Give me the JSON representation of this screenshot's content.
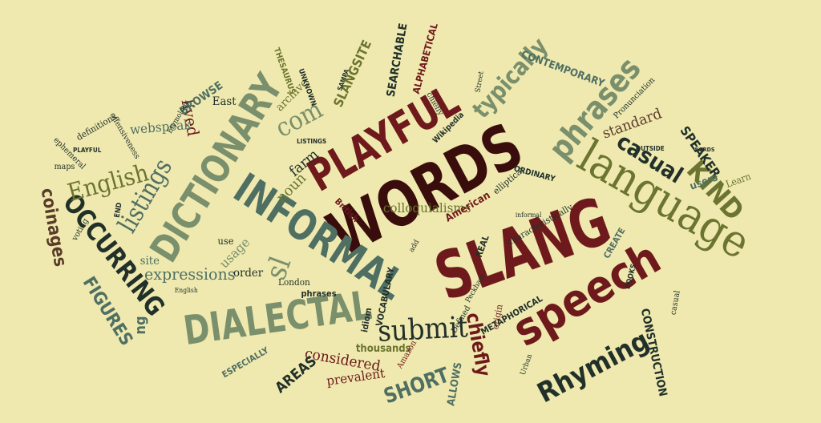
{
  "palette": {
    "background": "#efe9af",
    "dark_maroon": "#3a0d0d",
    "maroon": "#6e1a1c",
    "olive": "#6b7430",
    "sage": "#7a8f6c",
    "slate_green": "#4f6f63",
    "dark_slate": "#22302a",
    "brown": "#5a3c2a"
  },
  "words": [
    {
      "name": "word-words",
      "text": "WORDS",
      "color": "#3a0d0d",
      "style": "bold"
    },
    {
      "name": "word-slang",
      "text": "SLANG",
      "color": "#6e1a1c",
      "style": "bold"
    },
    {
      "name": "word-playful",
      "text": "PLAYFUL",
      "color": "#6e1a1c",
      "style": "bold"
    },
    {
      "name": "word-informal",
      "text": "INFORMAL",
      "color": "#4f6f63",
      "style": "bold"
    },
    {
      "name": "word-dictionary",
      "text": "DICTIONARY",
      "color": "#7a8f6c",
      "style": "bold"
    },
    {
      "name": "word-dialectal",
      "text": "DIALECTAL",
      "color": "#7a8f6c",
      "style": "bold"
    },
    {
      "name": "word-speech",
      "text": "speech",
      "color": "#6e1a1c",
      "style": "bold"
    },
    {
      "name": "word-language",
      "text": "language",
      "color": "#6b7430",
      "style": "serif"
    },
    {
      "name": "word-rhyming",
      "text": "Rhyming",
      "color": "#22302a",
      "style": "bold"
    },
    {
      "name": "word-phrases",
      "text": "phrases",
      "color": "#7a8f6c",
      "style": "bold"
    },
    {
      "name": "word-typically",
      "text": "typically",
      "color": "#7a8f6c",
      "style": "bold"
    },
    {
      "name": "word-submit",
      "text": "submit",
      "color": "#22302a",
      "style": "serif"
    },
    {
      "name": "word-occurring",
      "text": "OCCURRING",
      "color": "#22302a",
      "style": "bold"
    },
    {
      "name": "word-listings",
      "text": "listings",
      "color": "#4f6f63",
      "style": "serif"
    },
    {
      "name": "word-english",
      "text": "English",
      "color": "#6b7430",
      "style": "serif"
    },
    {
      "name": "word-coinages",
      "text": "coinages",
      "color": "#5a3c2a",
      "style": "bold"
    },
    {
      "name": "word-chiefly-large",
      "text": "chiefly",
      "color": "#6e1a1c",
      "style": "bold"
    },
    {
      "name": "word-kind",
      "text": "KIND",
      "color": "#6b7430",
      "style": "bold"
    },
    {
      "name": "word-casual",
      "text": "casual",
      "color": "#22302a",
      "style": "bold"
    },
    {
      "name": "word-com",
      "text": "com",
      "color": "#7a8f6c",
      "style": "serif"
    },
    {
      "name": "word-sl",
      "text": "sl",
      "color": "#7a8f6c",
      "style": "serif"
    },
    {
      "name": "word-figures",
      "text": "FIGURES",
      "color": "#4f6f63",
      "style": "bold"
    },
    {
      "name": "word-expressions",
      "text": "expressions",
      "color": "#4f6f63",
      "style": "serif"
    },
    {
      "name": "word-short",
      "text": "SHORT",
      "color": "#4f6f63",
      "style": "bold"
    },
    {
      "name": "word-colloquialisms",
      "text": "colloquialisms",
      "color": "#6b7430",
      "style": "serif"
    },
    {
      "name": "word-considered",
      "text": "considered",
      "color": "#6e1a1c",
      "style": "serif"
    },
    {
      "name": "word-prevalent",
      "text": "prevalent",
      "color": "#6e1a1c",
      "style": "serif"
    },
    {
      "name": "word-areas",
      "text": "AREAS",
      "color": "#22302a",
      "style": "bold"
    },
    {
      "name": "word-especially",
      "text": "ESPECIALLY",
      "color": "#4f6f63",
      "style": "bold"
    },
    {
      "name": "word-thousands",
      "text": "thousands",
      "color": "#6b7430",
      "style": "bold"
    },
    {
      "name": "word-construction",
      "text": "CONSTRUCTION",
      "color": "#22302a",
      "style": "bold"
    },
    {
      "name": "word-allows",
      "text": "ALLOWS",
      "color": "#4f6f63",
      "style": "bold"
    },
    {
      "name": "word-speaker",
      "text": "SPEAKER",
      "color": "#22302a",
      "style": "bold"
    },
    {
      "name": "word-users",
      "text": "users",
      "color": "#4f6f63",
      "style": "bold"
    },
    {
      "name": "word-learn",
      "text": "Learn",
      "color": "#6b7430",
      "style": "serif"
    },
    {
      "name": "word-standard",
      "text": "standard",
      "color": "#5a3c2a",
      "style": "serif"
    },
    {
      "name": "word-contemporary",
      "text": "CONTEMPORARY",
      "color": "#4f6f63",
      "style": "bold"
    },
    {
      "name": "word-noun",
      "text": "noun",
      "color": "#6b7430",
      "style": "serif"
    },
    {
      "name": "word-farm",
      "text": "farm",
      "color": "#22302a",
      "style": "serif"
    },
    {
      "name": "word-lived",
      "text": "lived",
      "color": "#6e1a1c",
      "style": "serif"
    },
    {
      "name": "word-webspeak",
      "text": "webspeak",
      "color": "#4f6f63",
      "style": "serif"
    },
    {
      "name": "word-browse",
      "text": "BROWSE",
      "color": "#4f6f63",
      "style": "bold"
    },
    {
      "name": "word-east",
      "text": "East",
      "color": "#22302a",
      "style": "serif"
    },
    {
      "name": "word-archive",
      "text": "archive",
      "color": "#6b7430",
      "style": "serif"
    },
    {
      "name": "word-slangsite",
      "text": "SLANGSITE",
      "color": "#6b7430",
      "style": "bold"
    },
    {
      "name": "word-searchable",
      "text": "SEARCHABLE",
      "color": "#22302a",
      "style": "bold"
    },
    {
      "name": "word-alphabetical",
      "text": "ALPHABETICAL",
      "color": "#6e1a1c",
      "style": "bold"
    },
    {
      "name": "word-definitions",
      "text": "definitions",
      "color": "#22302a",
      "style": "serif"
    },
    {
      "name": "word-offensiveness",
      "text": "offensiveness",
      "color": "#22302a",
      "style": "serif"
    },
    {
      "name": "word-usage",
      "text": "usage",
      "color": "#7a8f6c",
      "style": "serif"
    },
    {
      "name": "word-order",
      "text": "order",
      "color": "#22302a",
      "style": "serif"
    },
    {
      "name": "word-site",
      "text": "site",
      "color": "#4f6f63",
      "style": "serif"
    },
    {
      "name": "word-use",
      "text": "use",
      "color": "#22302a",
      "style": "serif"
    },
    {
      "name": "word-ng",
      "text": "ng",
      "color": "#4f6f63",
      "style": "bold"
    },
    {
      "name": "word-american",
      "text": "American",
      "color": "#6e1a1c",
      "style": "bold"
    },
    {
      "name": "word-british",
      "text": "British",
      "color": "#6e1a1c",
      "style": "bold"
    },
    {
      "name": "word-idiom",
      "text": "idiom",
      "color": "#22302a",
      "style": "bold"
    },
    {
      "name": "word-london",
      "text": "London",
      "color": "#22302a",
      "style": "serif"
    },
    {
      "name": "word-phrases-small",
      "text": "phrases",
      "color": "#22302a",
      "style": "bold"
    },
    {
      "name": "word-vocabulary",
      "text": "VOCABULARY",
      "color": "#22302a",
      "style": "bold"
    },
    {
      "name": "word-metaphorical",
      "text": "METAPHORICAL",
      "color": "#22302a",
      "style": "bold"
    },
    {
      "name": "word-real",
      "text": "REAL",
      "color": "#22302a",
      "style": "bold"
    },
    {
      "name": "word-create",
      "text": "CREATE",
      "color": "#4f6f63",
      "style": "bold"
    },
    {
      "name": "word-ordinary",
      "text": "ORDINARY",
      "color": "#22302a",
      "style": "bold"
    },
    {
      "name": "word-elliptical",
      "text": "elliptical",
      "color": "#22302a",
      "style": "serif"
    },
    {
      "name": "word-characteristically",
      "text": "characteristically",
      "color": "#22302a",
      "style": "serif"
    },
    {
      "name": "word-origin",
      "text": "origin",
      "color": "#6e1a1c",
      "style": "serif"
    },
    {
      "name": "word-amazon",
      "text": "Amazon",
      "color": "#6e1a1c",
      "style": "serif"
    },
    {
      "name": "word-defined",
      "text": "Defined",
      "color": "#22302a",
      "style": "serif"
    },
    {
      "name": "word-voting",
      "text": "voting",
      "color": "#22302a",
      "style": "serif"
    },
    {
      "name": "word-maps",
      "text": "maps",
      "color": "#22302a",
      "style": "serif"
    },
    {
      "name": "word-ephemeral",
      "text": "ephemeral",
      "color": "#22302a",
      "style": "serif"
    },
    {
      "name": "word-thesaurus",
      "text": "THESAURUS",
      "color": "#6b7430",
      "style": "bold"
    },
    {
      "name": "word-unknown",
      "text": "UNKNOWN",
      "color": "#22302a",
      "style": "bold"
    },
    {
      "name": "word-wikipedia",
      "text": "Wikipedia",
      "color": "#22302a",
      "style": "bold"
    },
    {
      "name": "word-chiefly-small",
      "text": "chiefly",
      "color": "#22302a",
      "style": "serif"
    },
    {
      "name": "word-listings-small",
      "text": "LISTINGS",
      "color": "#22302a",
      "style": "bold"
    },
    {
      "name": "word-outside",
      "text": "OUTSIDE",
      "color": "#22302a",
      "style": "bold"
    },
    {
      "name": "word-books",
      "text": "BOOKS",
      "color": "#22302a",
      "style": "bold"
    },
    {
      "name": "word-casual-small",
      "text": "casual",
      "color": "#22302a",
      "style": "serif"
    },
    {
      "name": "word-pronunciation",
      "text": "Pronunciation",
      "color": "#22302a",
      "style": "serif"
    },
    {
      "name": "word-etymology",
      "text": "Etymology",
      "color": "#22302a",
      "style": "serif"
    },
    {
      "name": "word-playful-small",
      "text": "PLAYFUL",
      "color": "#22302a",
      "style": "bold"
    },
    {
      "name": "word-end",
      "text": "END",
      "color": "#22302a",
      "style": "bold"
    },
    {
      "name": "word-add",
      "text": "add",
      "color": "#22302a",
      "style": "serif"
    },
    {
      "name": "word-peckham",
      "text": "Peckham",
      "color": "#22302a",
      "style": "serif"
    },
    {
      "name": "word-urban",
      "text": "Urban",
      "color": "#22302a",
      "style": "serif"
    },
    {
      "name": "word-informal-small",
      "text": "informal",
      "color": "#22302a",
      "style": "serif"
    },
    {
      "name": "word-words-small",
      "text": "WORDS",
      "color": "#22302a",
      "style": "bold"
    },
    {
      "name": "word-english-small",
      "text": "English",
      "color": "#22302a",
      "style": "serif"
    },
    {
      "name": "word-street",
      "text": "Street",
      "color": "#22302a",
      "style": "serif"
    },
    {
      "name": "word-sampa",
      "text": "SAMPA",
      "color": "#22302a",
      "style": "bold"
    }
  ]
}
